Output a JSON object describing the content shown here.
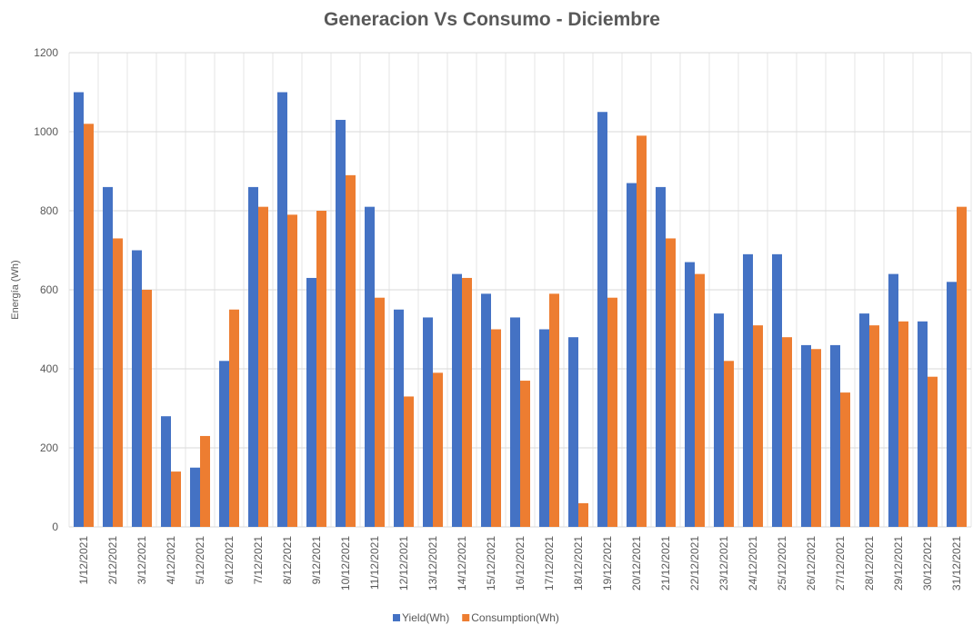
{
  "chart_data": {
    "type": "bar",
    "title": "Generacion Vs Consumo - Diciembre",
    "y_label": "Energía (Wh)",
    "categories": [
      "1/12/2021",
      "2/12/2021",
      "3/12/2021",
      "4/12/2021",
      "5/12/2021",
      "6/12/2021",
      "7/12/2021",
      "8/12/2021",
      "9/12/2021",
      "10/12/2021",
      "11/12/2021",
      "12/12/2021",
      "13/12/2021",
      "14/12/2021",
      "15/12/2021",
      "16/12/2021",
      "17/12/2021",
      "18/12/2021",
      "19/12/2021",
      "20/12/2021",
      "21/12/2021",
      "22/12/2021",
      "23/12/2021",
      "24/12/2021",
      "25/12/2021",
      "26/12/2021",
      "27/12/2021",
      "28/12/2021",
      "29/12/2021",
      "30/12/2021",
      "31/12/2021"
    ],
    "series": [
      {
        "name": "Yield(Wh)",
        "color": "#4472c4",
        "values": [
          1100,
          860,
          700,
          280,
          150,
          420,
          860,
          1100,
          630,
          1030,
          810,
          550,
          530,
          640,
          590,
          530,
          500,
          480,
          1050,
          870,
          860,
          670,
          540,
          690,
          690,
          460,
          460,
          540,
          640,
          520,
          620
        ]
      },
      {
        "name": "Consumption(Wh)",
        "color": "#ed7d31",
        "values": [
          1020,
          730,
          600,
          140,
          230,
          550,
          810,
          790,
          800,
          890,
          580,
          330,
          390,
          630,
          500,
          370,
          590,
          60,
          580,
          990,
          730,
          640,
          420,
          510,
          480,
          450,
          340,
          510,
          520,
          380,
          810
        ]
      }
    ],
    "ylim": [
      0,
      1200
    ],
    "yticks": [
      0,
      200,
      400,
      600,
      800,
      1000,
      1200
    ],
    "grid": true,
    "legend": "bottom"
  }
}
